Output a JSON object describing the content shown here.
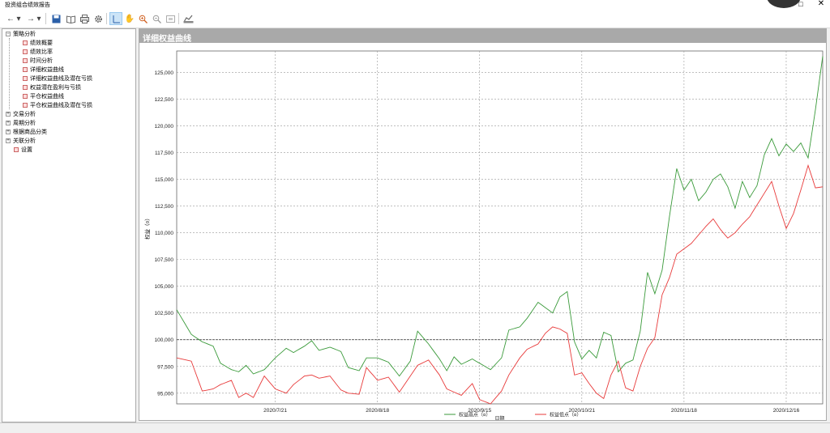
{
  "window": {
    "title": "投资组合绩效报告",
    "maximize_glyph": "□",
    "close_glyph": "✕"
  },
  "tree": {
    "nodes": [
      {
        "label": "策略分析",
        "expander": "⊟"
      },
      {
        "label": "绩效概要"
      },
      {
        "label": "绩效比率"
      },
      {
        "label": "时间分析"
      },
      {
        "label": "详细权益曲线"
      },
      {
        "label": "详细权益曲线及潜在亏损"
      },
      {
        "label": "权益潜在盈利与亏损"
      },
      {
        "label": "平仓权益曲线"
      },
      {
        "label": "平仓权益曲线及潜在亏损"
      },
      {
        "label": "交易分析",
        "expander": "⊞"
      },
      {
        "label": "周期分析",
        "expander": "⊞"
      },
      {
        "label": "根据商品分类",
        "expander": "⊞"
      },
      {
        "label": "关联分析",
        "expander": "⊞"
      },
      {
        "label": "设置"
      }
    ]
  },
  "chart_panel": {
    "title": "详细权益曲线"
  },
  "chart_data": {
    "type": "line",
    "xlabel": "日期",
    "ylabel": "权益（¤）",
    "ylim": [
      94000,
      127000
    ],
    "yticks": [
      95000,
      97500,
      100000,
      102500,
      105000,
      107500,
      110000,
      112500,
      115000,
      117500,
      120000,
      122500,
      125000
    ],
    "ytick_labels": [
      "95,000",
      "97,500",
      "100,000",
      "102,500",
      "105,000",
      "107,500",
      "110,000",
      "112,500",
      "115,000",
      "117,500",
      "120,000",
      "122,500",
      "125,000"
    ],
    "xticks": [
      "2020/7/21",
      "2020/8/18",
      "2020/9/15",
      "2020/10/21",
      "2020/11/18",
      "2020/12/16"
    ],
    "xtick_index": [
      27,
      55,
      83,
      111,
      139,
      167
    ],
    "n_points": 178,
    "series": [
      {
        "name": "权益高点（¤）",
        "color": "#3a9a3a",
        "anchors": [
          [
            0,
            102800
          ],
          [
            4,
            100500
          ],
          [
            7,
            99800
          ],
          [
            10,
            99400
          ],
          [
            12,
            97800
          ],
          [
            15,
            97200
          ],
          [
            17,
            97000
          ],
          [
            19,
            97600
          ],
          [
            21,
            96800
          ],
          [
            24,
            97200
          ],
          [
            27,
            98300
          ],
          [
            30,
            99200
          ],
          [
            32,
            98800
          ],
          [
            35,
            99400
          ],
          [
            37,
            99900
          ],
          [
            39,
            99000
          ],
          [
            42,
            99300
          ],
          [
            45,
            98900
          ],
          [
            47,
            97400
          ],
          [
            50,
            97100
          ],
          [
            52,
            98300
          ],
          [
            55,
            98300
          ],
          [
            58,
            97900
          ],
          [
            61,
            96600
          ],
          [
            64,
            98000
          ],
          [
            66,
            100800
          ],
          [
            69,
            99600
          ],
          [
            72,
            98200
          ],
          [
            74,
            97100
          ],
          [
            76,
            98400
          ],
          [
            78,
            97700
          ],
          [
            81,
            98200
          ],
          [
            83,
            97800
          ],
          [
            86,
            97200
          ],
          [
            89,
            98300
          ],
          [
            91,
            100900
          ],
          [
            94,
            101200
          ],
          [
            96,
            102000
          ],
          [
            99,
            103500
          ],
          [
            101,
            103000
          ],
          [
            103,
            102500
          ],
          [
            105,
            104000
          ],
          [
            107,
            104500
          ],
          [
            109,
            99800
          ],
          [
            111,
            98200
          ],
          [
            113,
            99000
          ],
          [
            115,
            98300
          ],
          [
            117,
            100700
          ],
          [
            119,
            100400
          ],
          [
            121,
            97000
          ],
          [
            123,
            97800
          ],
          [
            125,
            98100
          ],
          [
            127,
            100800
          ],
          [
            129,
            106300
          ],
          [
            131,
            104300
          ],
          [
            133,
            106500
          ],
          [
            135,
            111500
          ],
          [
            137,
            116000
          ],
          [
            139,
            114000
          ],
          [
            141,
            115000
          ],
          [
            143,
            113000
          ],
          [
            145,
            113800
          ],
          [
            147,
            115000
          ],
          [
            149,
            115500
          ],
          [
            151,
            114300
          ],
          [
            153,
            112300
          ],
          [
            155,
            114800
          ],
          [
            157,
            113300
          ],
          [
            159,
            114400
          ],
          [
            161,
            117300
          ],
          [
            163,
            118800
          ],
          [
            165,
            117200
          ],
          [
            167,
            118300
          ],
          [
            169,
            117600
          ],
          [
            171,
            118400
          ],
          [
            173,
            117000
          ],
          [
            175,
            121500
          ],
          [
            177,
            126500
          ]
        ]
      },
      {
        "name": "权益低点（¤）",
        "color": "#e83a3a",
        "anchors": [
          [
            0,
            98300
          ],
          [
            4,
            98000
          ],
          [
            7,
            95200
          ],
          [
            10,
            95400
          ],
          [
            12,
            95800
          ],
          [
            15,
            96200
          ],
          [
            17,
            94600
          ],
          [
            19,
            95000
          ],
          [
            21,
            94600
          ],
          [
            24,
            96600
          ],
          [
            27,
            95400
          ],
          [
            30,
            95000
          ],
          [
            32,
            95800
          ],
          [
            35,
            96600
          ],
          [
            37,
            96700
          ],
          [
            39,
            96400
          ],
          [
            42,
            96600
          ],
          [
            45,
            95300
          ],
          [
            47,
            95000
          ],
          [
            50,
            94900
          ],
          [
            52,
            97400
          ],
          [
            55,
            96200
          ],
          [
            58,
            96500
          ],
          [
            61,
            95100
          ],
          [
            64,
            96600
          ],
          [
            66,
            97600
          ],
          [
            69,
            98100
          ],
          [
            72,
            96700
          ],
          [
            74,
            95400
          ],
          [
            76,
            95100
          ],
          [
            78,
            94800
          ],
          [
            81,
            95900
          ],
          [
            83,
            94400
          ],
          [
            86,
            94000
          ],
          [
            89,
            95200
          ],
          [
            91,
            96700
          ],
          [
            94,
            98300
          ],
          [
            96,
            99100
          ],
          [
            99,
            99600
          ],
          [
            101,
            100600
          ],
          [
            103,
            101200
          ],
          [
            105,
            101000
          ],
          [
            107,
            100600
          ],
          [
            109,
            96700
          ],
          [
            111,
            96900
          ],
          [
            113,
            95900
          ],
          [
            115,
            95000
          ],
          [
            117,
            94500
          ],
          [
            119,
            96700
          ],
          [
            121,
            98000
          ],
          [
            123,
            95500
          ],
          [
            125,
            95200
          ],
          [
            127,
            97500
          ],
          [
            129,
            99200
          ],
          [
            131,
            100200
          ],
          [
            133,
            104200
          ],
          [
            135,
            105800
          ],
          [
            137,
            108000
          ],
          [
            139,
            108500
          ],
          [
            141,
            109000
          ],
          [
            143,
            109800
          ],
          [
            145,
            110600
          ],
          [
            147,
            111300
          ],
          [
            149,
            110300
          ],
          [
            151,
            109500
          ],
          [
            153,
            110000
          ],
          [
            155,
            110800
          ],
          [
            157,
            111500
          ],
          [
            159,
            112600
          ],
          [
            161,
            113700
          ],
          [
            163,
            114800
          ],
          [
            165,
            112500
          ],
          [
            167,
            110400
          ],
          [
            169,
            111800
          ],
          [
            171,
            114000
          ],
          [
            173,
            116300
          ],
          [
            175,
            114200
          ],
          [
            177,
            114300
          ]
        ]
      }
    ]
  }
}
